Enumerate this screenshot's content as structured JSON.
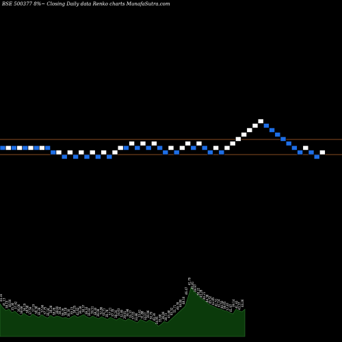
{
  "chart_data": {
    "type": "renko",
    "title": "BSE 500377 8%~ Closing Daily data Renko charts MunafaSutra.com",
    "colors": {
      "up": "#ffffff",
      "down": "#1e6ee6",
      "border_up": "#000000",
      "border_down": "#000000",
      "hline": "#b4642d",
      "volume_fill": "#0b3a0b",
      "volume_stroke": "#2f7a2f",
      "volume_text": "#ffffff",
      "background": "#000000"
    },
    "bricks": [
      {
        "level": 4,
        "dir": "down"
      },
      {
        "level": 4,
        "dir": "up"
      },
      {
        "level": 4,
        "dir": "down"
      },
      {
        "level": 4,
        "dir": "up"
      },
      {
        "level": 4,
        "dir": "down"
      },
      {
        "level": 4,
        "dir": "up"
      },
      {
        "level": 4,
        "dir": "down"
      },
      {
        "level": 4,
        "dir": "up"
      },
      {
        "level": 4,
        "dir": "down"
      },
      {
        "level": 3,
        "dir": "down"
      },
      {
        "level": 3,
        "dir": "up"
      },
      {
        "level": 2,
        "dir": "down"
      },
      {
        "level": 3,
        "dir": "up"
      },
      {
        "level": 2,
        "dir": "down"
      },
      {
        "level": 3,
        "dir": "up"
      },
      {
        "level": 2,
        "dir": "down"
      },
      {
        "level": 3,
        "dir": "up"
      },
      {
        "level": 2,
        "dir": "down"
      },
      {
        "level": 3,
        "dir": "up"
      },
      {
        "level": 2,
        "dir": "down"
      },
      {
        "level": 3,
        "dir": "up"
      },
      {
        "level": 4,
        "dir": "up"
      },
      {
        "level": 4,
        "dir": "down"
      },
      {
        "level": 5,
        "dir": "up"
      },
      {
        "level": 4,
        "dir": "down"
      },
      {
        "level": 5,
        "dir": "up"
      },
      {
        "level": 4,
        "dir": "down"
      },
      {
        "level": 5,
        "dir": "up"
      },
      {
        "level": 4,
        "dir": "down"
      },
      {
        "level": 3,
        "dir": "down"
      },
      {
        "level": 4,
        "dir": "up"
      },
      {
        "level": 3,
        "dir": "down"
      },
      {
        "level": 4,
        "dir": "up"
      },
      {
        "level": 5,
        "dir": "up"
      },
      {
        "level": 4,
        "dir": "down"
      },
      {
        "level": 5,
        "dir": "up"
      },
      {
        "level": 4,
        "dir": "down"
      },
      {
        "level": 3,
        "dir": "down"
      },
      {
        "level": 4,
        "dir": "up"
      },
      {
        "level": 3,
        "dir": "down"
      },
      {
        "level": 4,
        "dir": "up"
      },
      {
        "level": 5,
        "dir": "up"
      },
      {
        "level": 6,
        "dir": "up"
      },
      {
        "level": 7,
        "dir": "up"
      },
      {
        "level": 8,
        "dir": "up"
      },
      {
        "level": 9,
        "dir": "up"
      },
      {
        "level": 10,
        "dir": "up"
      },
      {
        "level": 9,
        "dir": "down"
      },
      {
        "level": 8,
        "dir": "down"
      },
      {
        "level": 7,
        "dir": "down"
      },
      {
        "level": 6,
        "dir": "down"
      },
      {
        "level": 5,
        "dir": "down"
      },
      {
        "level": 4,
        "dir": "down"
      },
      {
        "level": 3,
        "dir": "down"
      },
      {
        "level": 4,
        "dir": "up"
      },
      {
        "level": 3,
        "dir": "down"
      },
      {
        "level": 2,
        "dir": "down"
      },
      {
        "level": 3,
        "dir": "up"
      }
    ],
    "hlines": [
      5.9,
      2.5
    ],
    "volume": {
      "values": [
        48,
        42,
        38,
        40,
        35,
        37,
        33,
        30,
        34,
        31,
        29,
        33,
        30,
        28,
        32,
        29,
        27,
        31,
        28,
        30,
        29,
        27,
        28,
        26,
        29,
        31,
        28,
        30,
        32,
        29,
        27,
        30,
        28,
        26,
        29,
        27,
        25,
        28,
        26,
        24,
        27,
        25,
        23,
        26,
        24,
        22,
        20,
        25,
        23,
        21,
        24,
        22,
        20,
        15,
        18,
        22,
        20,
        24,
        28,
        32,
        36,
        40,
        44,
        58,
        72,
        66,
        62,
        57,
        54,
        51,
        47,
        45,
        43,
        41,
        40,
        38,
        37,
        35,
        33,
        40,
        38,
        36,
        40
      ],
      "labels": [
        "44.16",
        "41.13",
        "38.15",
        "40.00",
        "35.36",
        "37.42",
        "36.06",
        "38.68",
        "36.19",
        "38.58",
        "37.59",
        "37.19",
        "38.38",
        "36.28",
        "37.66",
        "37.75",
        "36.18",
        "38.28",
        "38.26",
        "38.60",
        "38.34",
        "36.26",
        "38.18",
        "36.30",
        "39.15",
        "38.25",
        "41.62",
        "36.28",
        "38.37",
        "39.16",
        "36.04",
        "39.51",
        "38.30",
        "36.08",
        "32.86",
        "34.71",
        "36.78",
        "37.21",
        "37.35",
        "38.24",
        "34.63",
        "32.80",
        "29.91",
        "36.98",
        "35.37",
        "37.03",
        "34.86",
        "33.61",
        "31.88",
        "34.07",
        "30.96",
        "30.70",
        "40.30",
        "34.95",
        "35.68",
        "36.94",
        "38.73",
        "43.48",
        "45.32",
        "51.71",
        "49.78",
        "44.80",
        "48.16",
        "46.47",
        "41.79",
        "40.81",
        "39.97",
        "38.22",
        "43.28",
        "40.21",
        "44.38",
        "45.52",
        "42.85",
        "41.51",
        "41.14",
        "40.50",
        "38.65",
        "37.87",
        "41.97",
        "39.14",
        "41.43",
        "43.37",
        "44.26"
      ]
    }
  }
}
